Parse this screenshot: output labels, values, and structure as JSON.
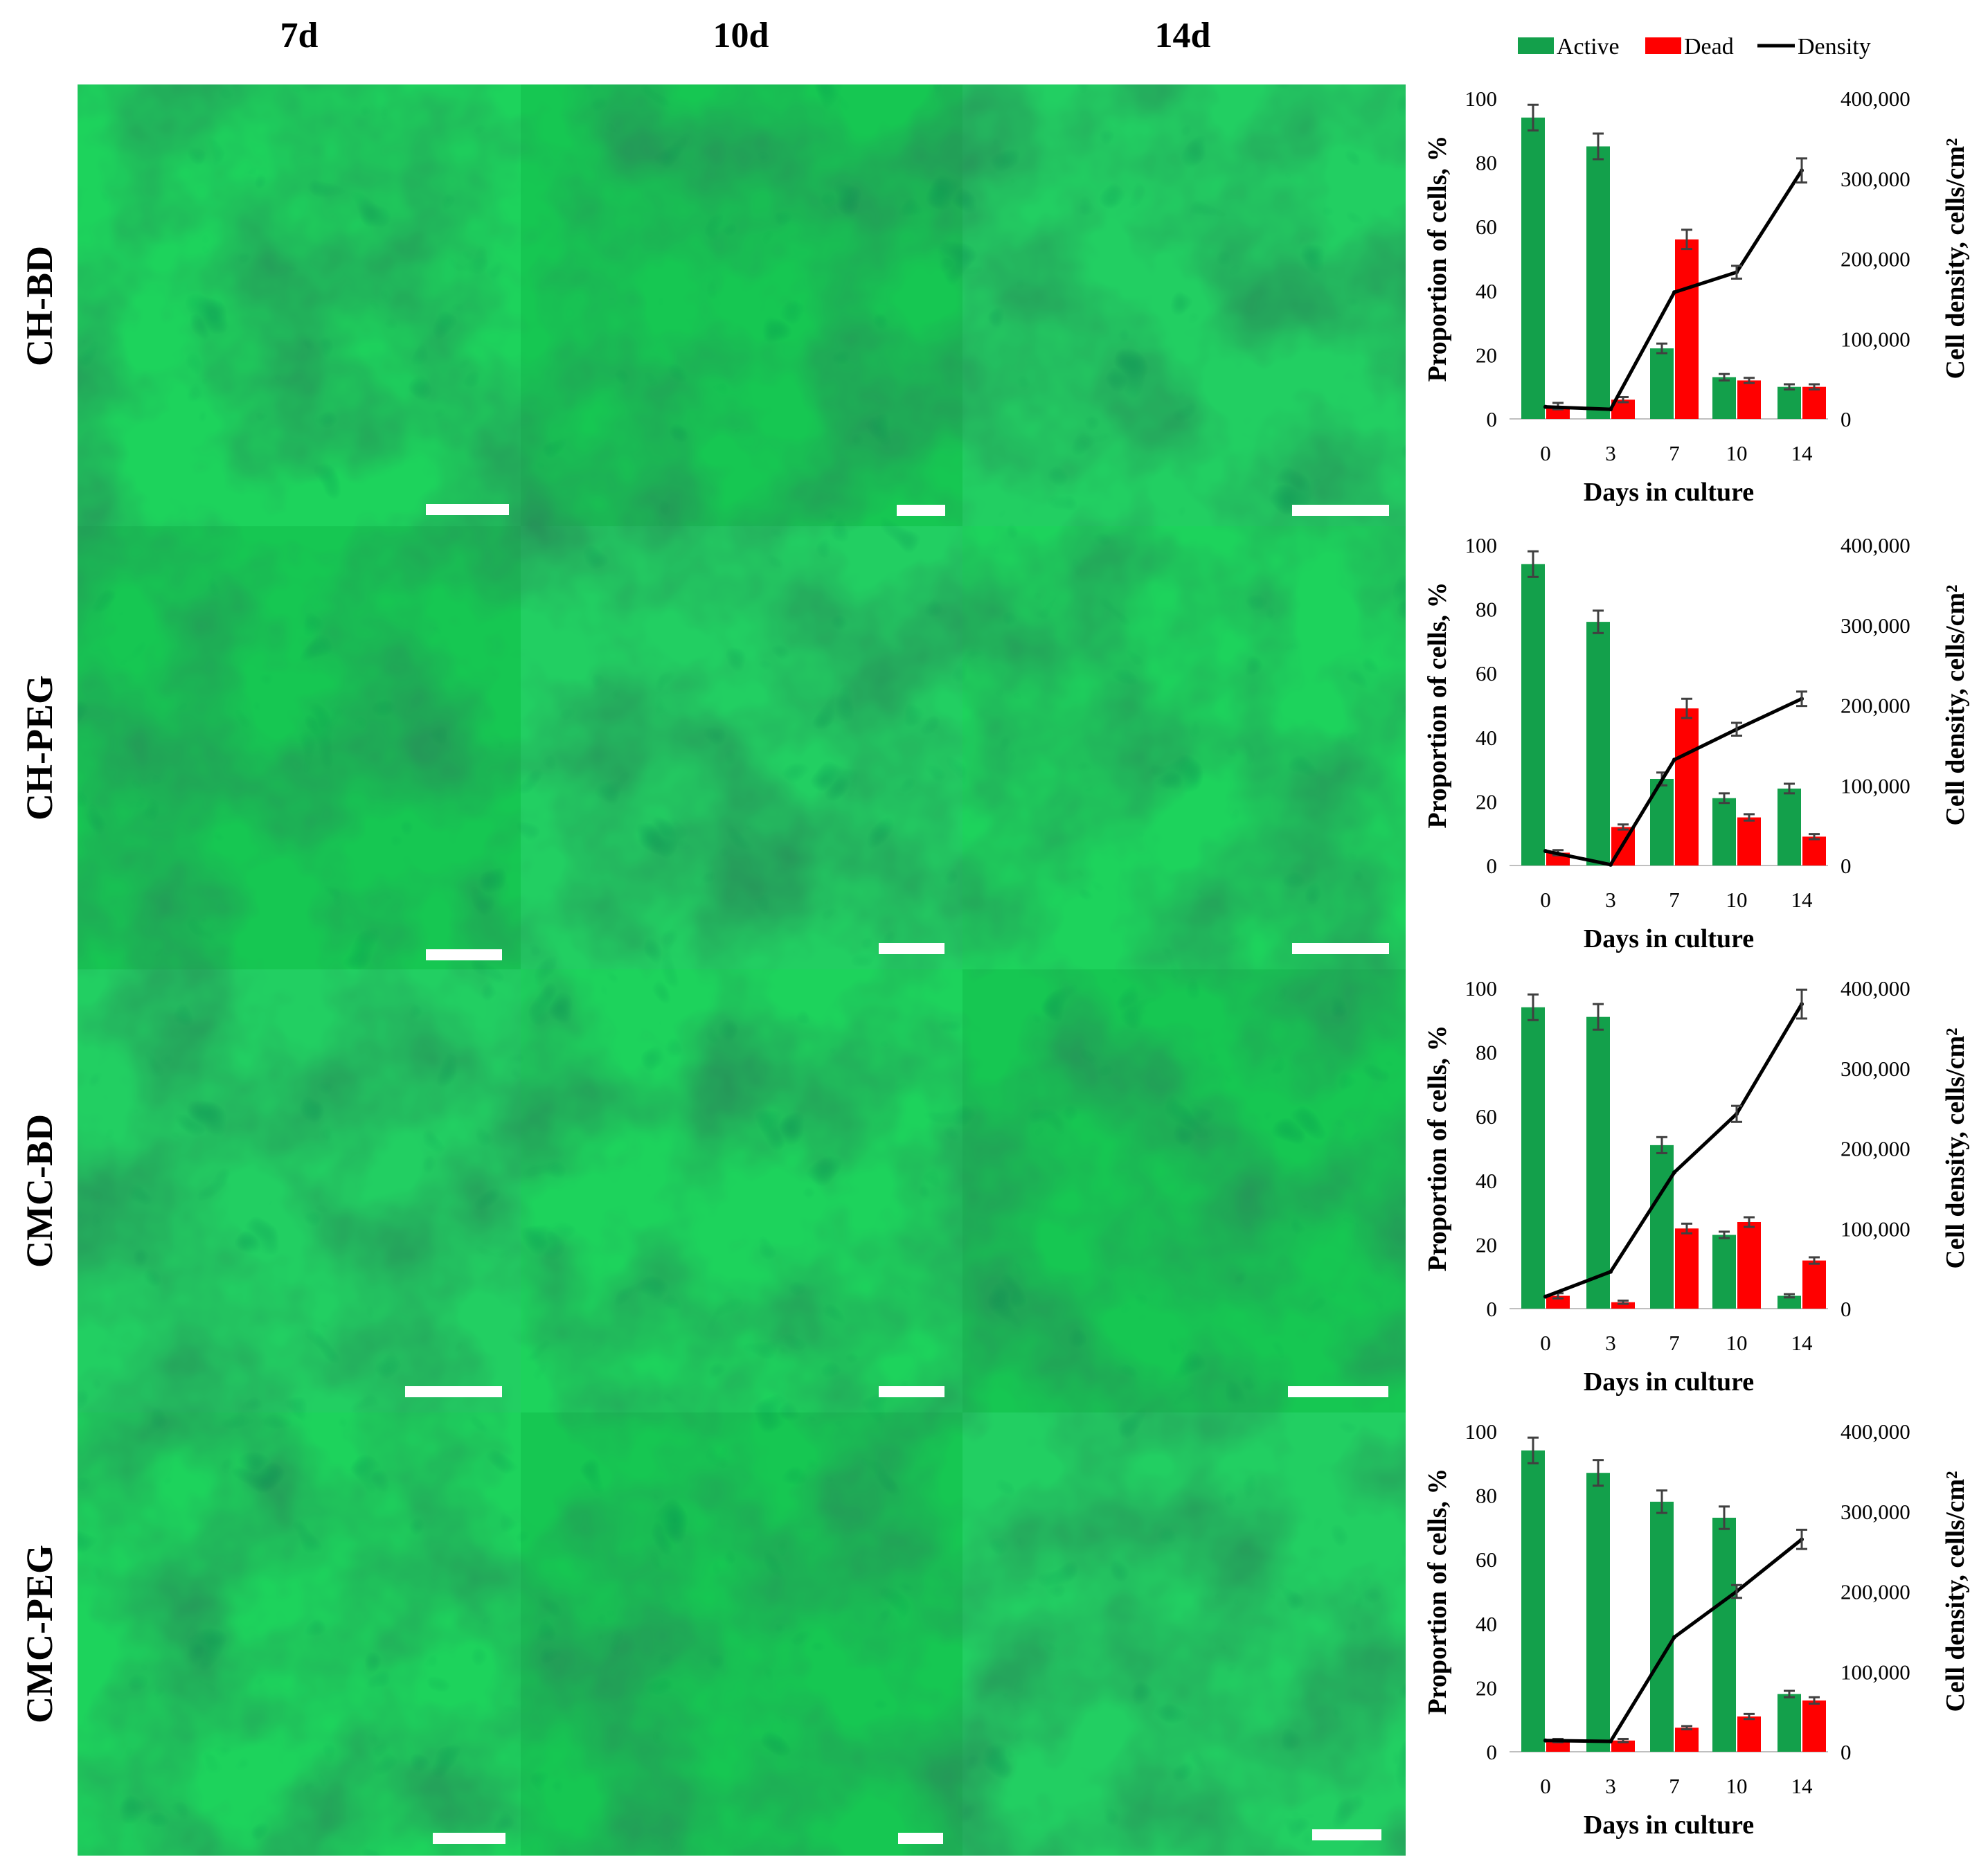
{
  "columns": [
    "7d",
    "10d",
    "14d"
  ],
  "rows": [
    "CH-BD",
    "CH-PEG",
    "CMC-BD",
    "CMC-PEG"
  ],
  "legend": [
    {
      "name": "Active",
      "kind": "bar",
      "color": "#13a04b"
    },
    {
      "name": "Dead",
      "kind": "bar",
      "color": "#ff0000"
    },
    {
      "name": "Density",
      "kind": "line",
      "color": "#000000"
    }
  ],
  "micrographs": {
    "background_color": "#19d05a",
    "content": "bright-field micrographs of green-stained plant cell aggregates in hydrogel, with white scale bars"
  },
  "chart_data": [
    {
      "type": "bar",
      "panel": "CH-BD",
      "categories": [
        "0",
        "3",
        "7",
        "10",
        "14"
      ],
      "xlabel": "Days in culture",
      "ylabel": "Proportion of cells, %",
      "y2label": "Cell density, cells/cm²",
      "ylim": [
        0,
        100
      ],
      "yticks": [
        "0",
        "20",
        "40",
        "60",
        "80",
        "100"
      ],
      "y2lim": [
        0,
        400000
      ],
      "y2ticks": [
        "0",
        "100,000",
        "200,000",
        "300,000",
        "400,000"
      ],
      "series": [
        {
          "name": "Active",
          "values": [
            94,
            85,
            22,
            13,
            10
          ],
          "errors": [
            4,
            4,
            1.5,
            1,
            0.8
          ]
        },
        {
          "name": "Dead",
          "values": [
            4,
            6,
            56,
            12,
            10
          ],
          "errors": [
            1,
            0.8,
            3,
            0.8,
            0.8
          ]
        },
        {
          "name": "Density",
          "type": "line",
          "values": [
            15000,
            12000,
            158000,
            183000,
            310000
          ],
          "errors": [
            0,
            0,
            0,
            8000,
            15000
          ]
        }
      ]
    },
    {
      "type": "bar",
      "panel": "CH-PEG",
      "categories": [
        "0",
        "3",
        "7",
        "10",
        "14"
      ],
      "xlabel": "Days in culture",
      "ylabel": "Proportion of cells, %",
      "y2label": "Cell density, cells/cm²",
      "ylim": [
        0,
        100
      ],
      "yticks": [
        "0",
        "20",
        "40",
        "60",
        "80",
        "100"
      ],
      "y2lim": [
        0,
        400000
      ],
      "y2ticks": [
        "0",
        "100,000",
        "200,000",
        "300,000",
        "400,000"
      ],
      "series": [
        {
          "name": "Active",
          "values": [
            94,
            76,
            27,
            21,
            24
          ],
          "errors": [
            4,
            3.5,
            2,
            1.5,
            1.5
          ]
        },
        {
          "name": "Dead",
          "values": [
            4,
            12,
            49,
            15,
            9
          ],
          "errors": [
            0.8,
            0.8,
            3,
            1,
            0.8
          ]
        },
        {
          "name": "Density",
          "type": "line",
          "values": [
            18000,
            1000,
            132000,
            170000,
            208000
          ],
          "errors": [
            0,
            0,
            0,
            8000,
            9000
          ]
        }
      ]
    },
    {
      "type": "bar",
      "panel": "CMC-BD",
      "categories": [
        "0",
        "3",
        "7",
        "10",
        "14"
      ],
      "xlabel": "Days in culture",
      "ylabel": "Proportion of cells, %",
      "y2label": "Cell density, cells/cm²",
      "ylim": [
        0,
        100
      ],
      "yticks": [
        "0",
        "20",
        "40",
        "60",
        "80",
        "100"
      ],
      "y2lim": [
        0,
        400000
      ],
      "y2ticks": [
        "0",
        "100,000",
        "200,000",
        "300,000",
        "400,000"
      ],
      "series": [
        {
          "name": "Active",
          "values": [
            94,
            91,
            51,
            23,
            4
          ],
          "errors": [
            4,
            4,
            2.5,
            1,
            0.5
          ]
        },
        {
          "name": "Dead",
          "values": [
            4,
            2,
            25,
            27,
            15
          ],
          "errors": [
            0.8,
            0.5,
            1.5,
            1.5,
            1
          ]
        },
        {
          "name": "Density",
          "type": "line",
          "values": [
            15000,
            46000,
            170000,
            243000,
            380000
          ],
          "errors": [
            0,
            0,
            0,
            10000,
            18000
          ]
        }
      ]
    },
    {
      "type": "bar",
      "panel": "CMC-PEG",
      "categories": [
        "0",
        "3",
        "7",
        "10",
        "14"
      ],
      "xlabel": "Days in culture",
      "ylabel": "Proportion of cells, %",
      "y2label": "Cell density, cells/cm²",
      "ylim": [
        0,
        100
      ],
      "yticks": [
        "0",
        "20",
        "40",
        "60",
        "80",
        "100"
      ],
      "y2lim": [
        0,
        400000
      ],
      "y2ticks": [
        "0",
        "100,000",
        "200,000",
        "300,000",
        "400,000"
      ],
      "series": [
        {
          "name": "Active",
          "values": [
            94,
            87,
            78,
            73,
            18
          ],
          "errors": [
            4,
            4,
            3.5,
            3.5,
            1
          ]
        },
        {
          "name": "Dead",
          "values": [
            3.5,
            3.5,
            7.5,
            11,
            16
          ],
          "errors": [
            0.5,
            0.5,
            0.5,
            0.8,
            1
          ]
        },
        {
          "name": "Density",
          "type": "line",
          "values": [
            14000,
            13000,
            143000,
            200000,
            265000
          ],
          "errors": [
            0,
            0,
            0,
            8000,
            12000
          ]
        }
      ]
    }
  ]
}
